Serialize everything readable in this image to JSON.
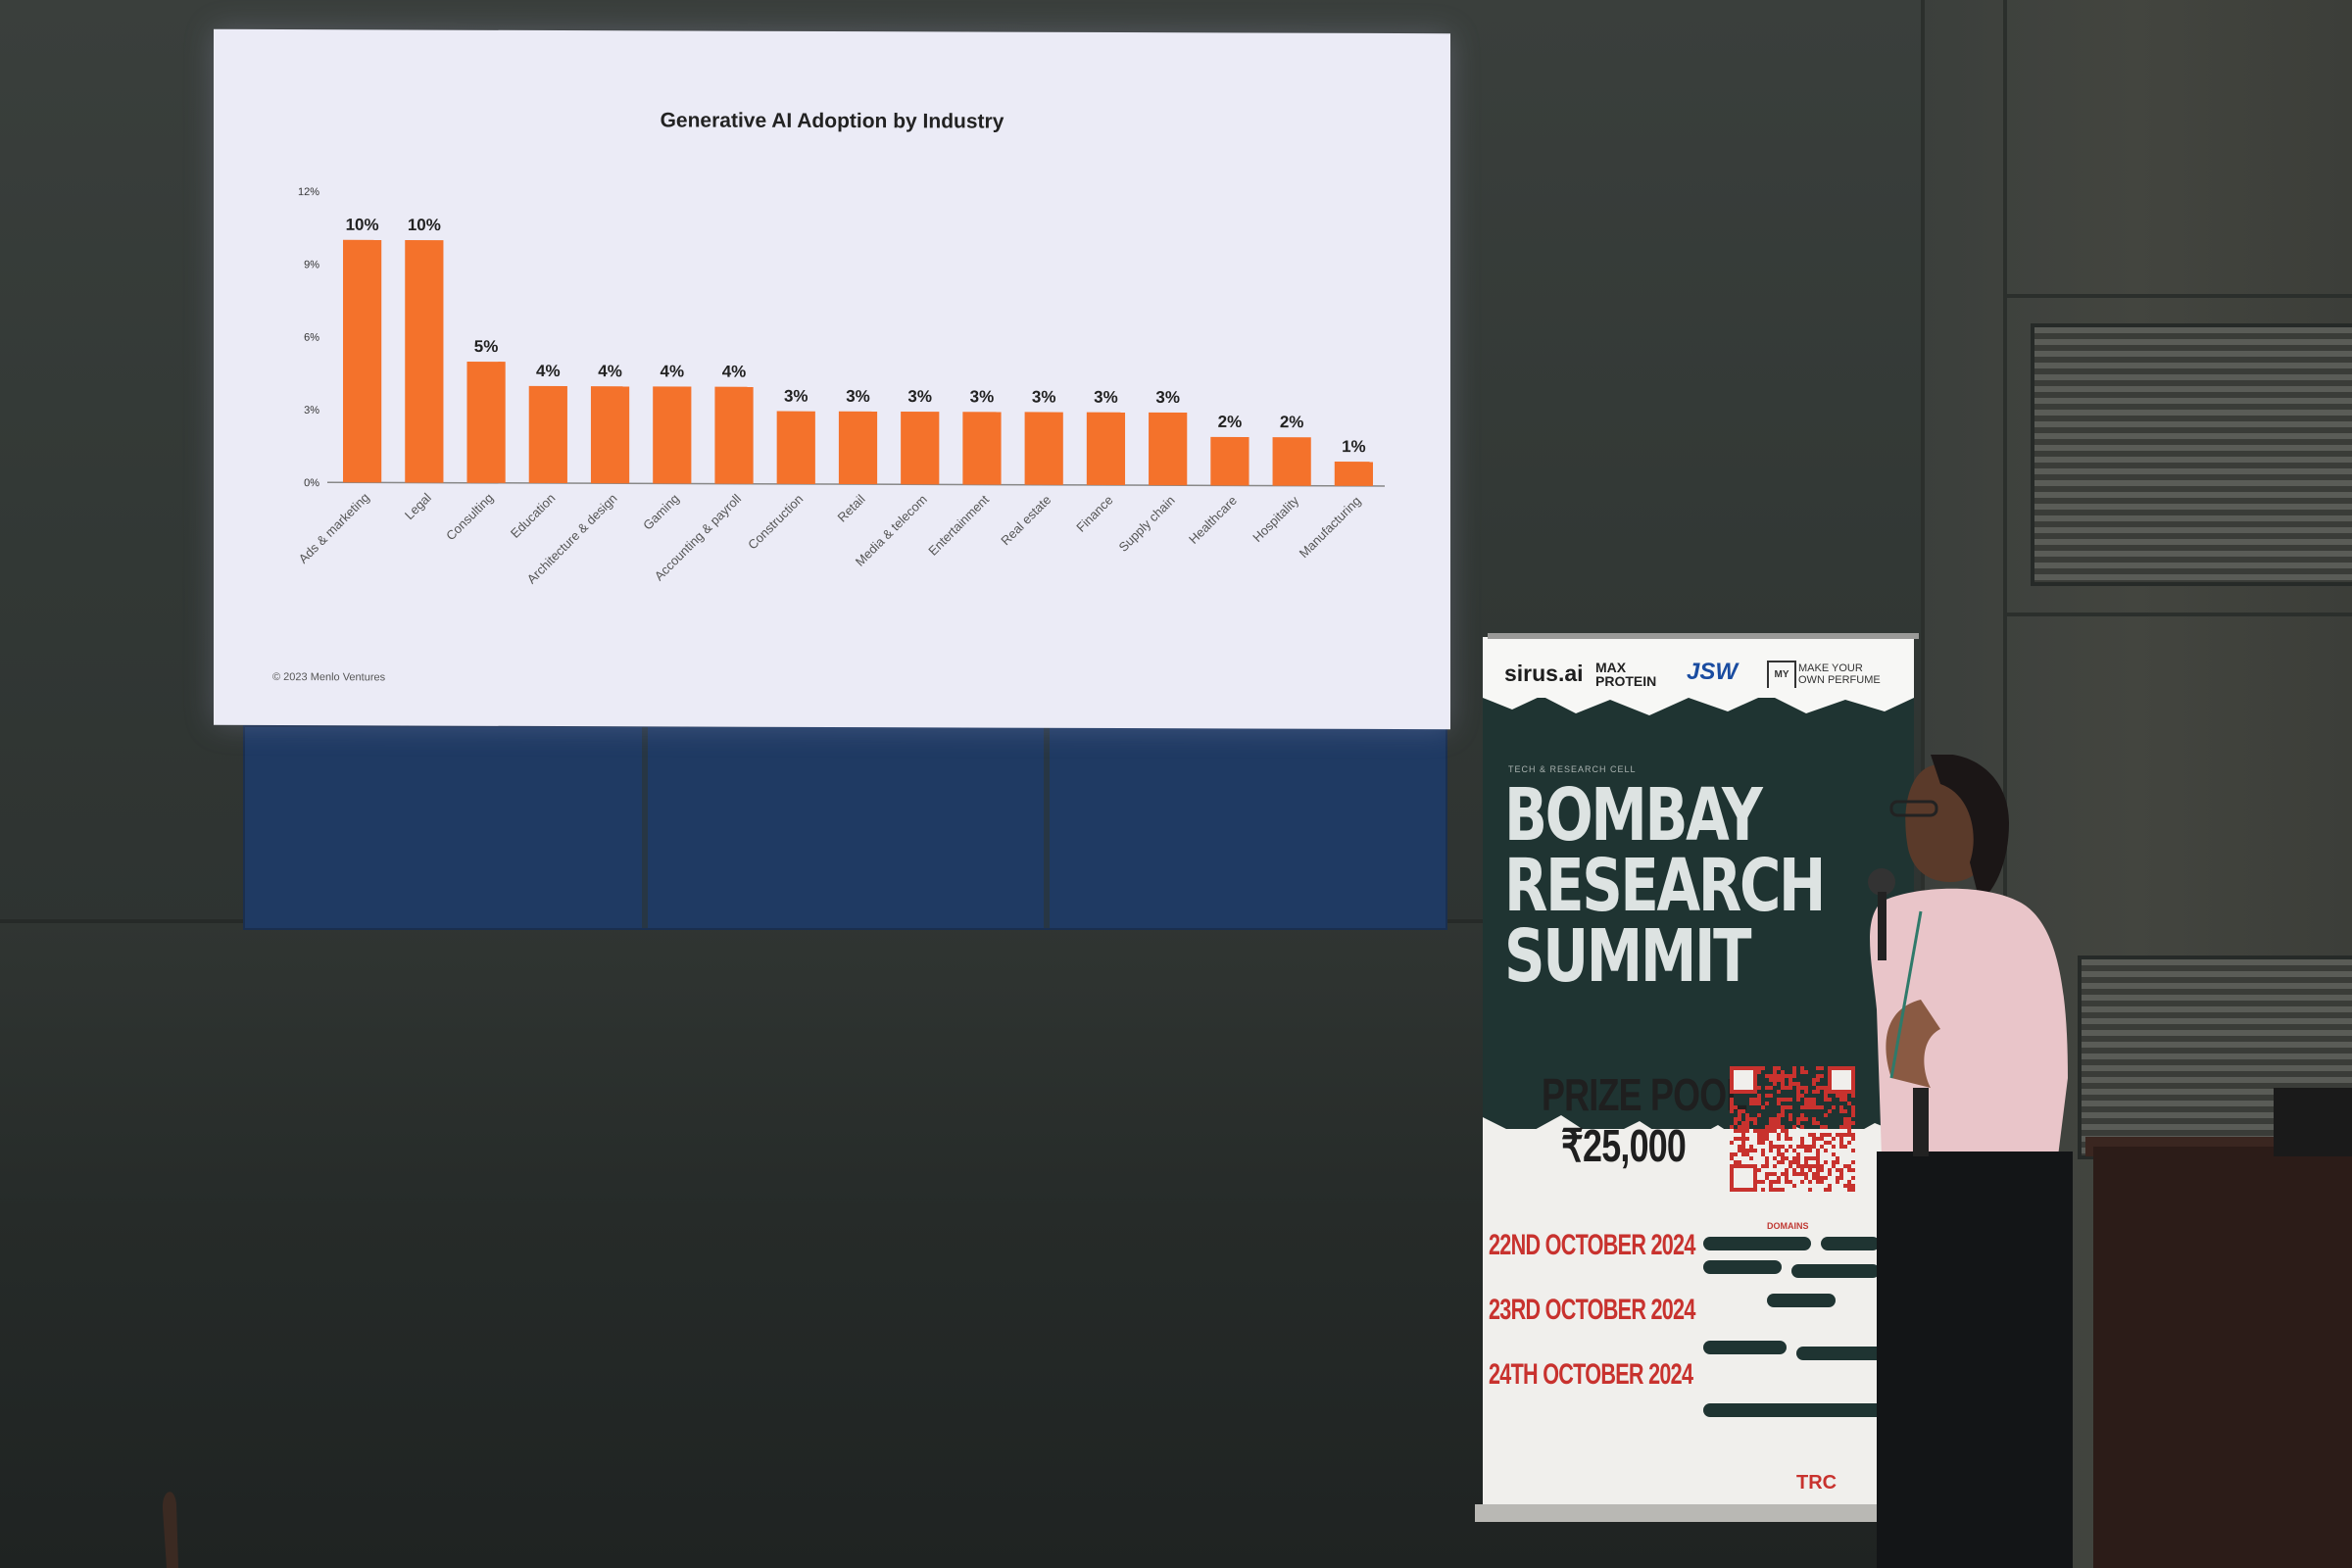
{
  "chart_data": {
    "type": "bar",
    "title": "Generative AI Adoption by Industry",
    "categories": [
      "Ads & marketing",
      "Legal",
      "Consulting",
      "Education",
      "Architecture & design",
      "Gaming",
      "Accounting & payroll",
      "Construction",
      "Retail",
      "Media & telecom",
      "Entertainment",
      "Real estate",
      "Finance",
      "Supply chain",
      "Healthcare",
      "Hospitality",
      "Manufacturing"
    ],
    "values": [
      10,
      10,
      5,
      4,
      4,
      4,
      4,
      3,
      3,
      3,
      3,
      3,
      3,
      3,
      2,
      2,
      1
    ],
    "value_labels": [
      "10%",
      "10%",
      "5%",
      "4%",
      "4%",
      "4%",
      "4%",
      "3%",
      "3%",
      "3%",
      "3%",
      "3%",
      "3%",
      "3%",
      "2%",
      "2%",
      "1%"
    ],
    "ylim": [
      0,
      12
    ],
    "yticks": [
      0,
      3,
      6,
      9,
      12
    ],
    "ytick_labels": [
      "0%",
      "3%",
      "6%",
      "9%",
      "12%"
    ],
    "xlabel": "",
    "ylabel": "",
    "grid": false,
    "bar_color": "#f4722b"
  },
  "slide": {
    "footer": "© 2023 Menlo Ventures",
    "background": "#ebebf6"
  },
  "banner": {
    "sponsors": {
      "sirus": "sirus.ai",
      "max_protein_line1": "MAX",
      "max_protein_line2": "PROTEIN",
      "jsw": "JSW",
      "perfume_mark": "MY OP",
      "perfume_line1": "MAKE YOUR",
      "perfume_line2": "OWN PERFUME"
    },
    "kicker": "TECH & RESEARCH CELL",
    "title_line1": "BOMBAY",
    "title_line2": "RESEARCH",
    "title_line3": "SUMMIT",
    "prize_label": "PRIZE POOL",
    "prize_amount": "₹25,000",
    "domains_label": "DOMAINS",
    "dates": [
      {
        "date": "22ND OCTOBER 2024"
      },
      {
        "date": "23RD OCTOBER 2024"
      },
      {
        "date": "24TH OCTOBER 2024"
      }
    ],
    "bottom_logo": "TRC",
    "accent": "#c8322e",
    "dark": "#1f3432"
  }
}
